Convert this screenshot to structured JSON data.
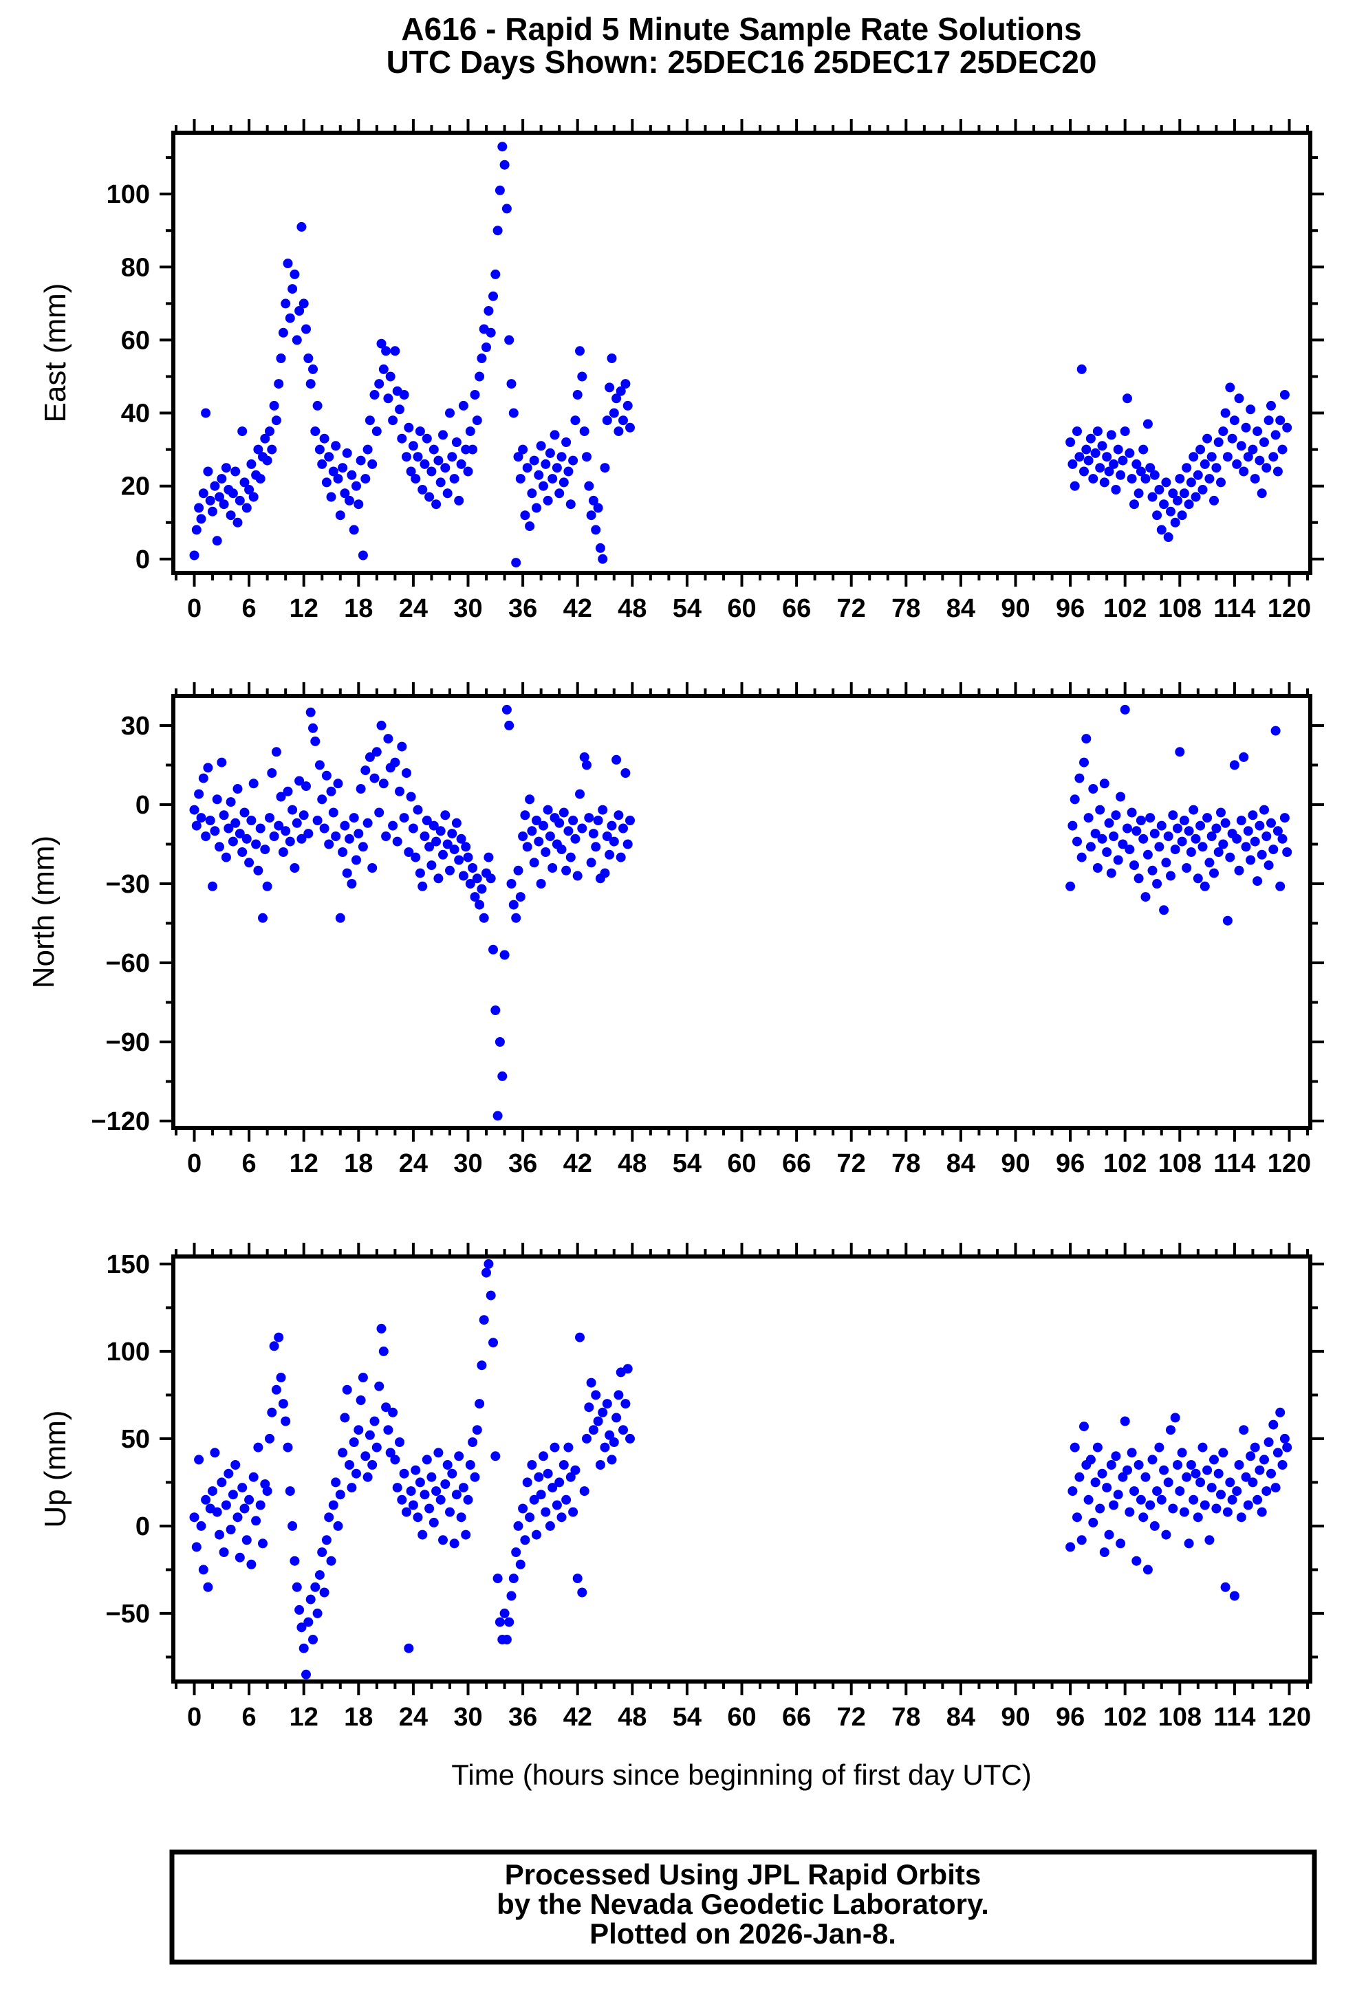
{
  "title": {
    "line1": "A616 - Rapid 5 Minute Sample Rate Solutions",
    "line2": "UTC Days Shown:  25DEC16 25DEC17 25DEC20"
  },
  "footer": {
    "line1": "Processed Using JPL Rapid Orbits",
    "line2": "by the Nevada Geodetic Laboratory.",
    "line3": "Plotted on 2026-Jan-8."
  },
  "colors": {
    "point": "#0000ff",
    "axis": "#000000",
    "background": "#ffffff"
  },
  "chart_data": {
    "type": "scatter",
    "station": "A616",
    "xlabel": "Time (hours since beginning of first day UTC)",
    "xlim": [
      -2.3,
      122.3
    ],
    "x_major_ticks": [
      0,
      6,
      12,
      18,
      24,
      30,
      36,
      42,
      48,
      54,
      60,
      66,
      72,
      78,
      84,
      90,
      96,
      102,
      108,
      114,
      120
    ],
    "x_minor_step": 2,
    "grid": false,
    "legend": "none",
    "panels": [
      {
        "name": "east",
        "ylabel": "East (mm)",
        "ylim": [
          -3.8,
          116.8
        ],
        "yticks": [
          0,
          20,
          40,
          60,
          80,
          100
        ],
        "y_minor_step": 10,
        "segments": [
          {
            "x0": 0,
            "dx": 0.25,
            "y": [
              1,
              8,
              14,
              11,
              18,
              40,
              24,
              16,
              13,
              20,
              5,
              17,
              22,
              15,
              25,
              19,
              12,
              18,
              24,
              10,
              16,
              35,
              21,
              14,
              19,
              26,
              17,
              23,
              30,
              22,
              28,
              33,
              27,
              35,
              30,
              42,
              38,
              48,
              55,
              62,
              70,
              81,
              66,
              74,
              78,
              60,
              68,
              91,
              70,
              63,
              55,
              48,
              52,
              35,
              42,
              30,
              26,
              33,
              21,
              28,
              17,
              24,
              31,
              22,
              12,
              25,
              18,
              29,
              16,
              23,
              8,
              20,
              15,
              27,
              1,
              22,
              30,
              38,
              26,
              45,
              35,
              48,
              59,
              52,
              57,
              44,
              50,
              38,
              57,
              46,
              41,
              33,
              45,
              28,
              36,
              24,
              31,
              22,
              28,
              35,
              19,
              26,
              33,
              17,
              24,
              30,
              15,
              27,
              21,
              34,
              25,
              18,
              40,
              28,
              22,
              32,
              16,
              26,
              42,
              30,
              24,
              35,
              30,
              45,
              38,
              50,
              55,
              63,
              58,
              68,
              62,
              72,
              78,
              90,
              101,
              113,
              108,
              96,
              60,
              48,
              40,
              -1,
              28,
              22,
              30,
              12,
              25,
              9,
              18,
              27,
              14,
              23,
              31,
              20,
              26,
              16,
              29,
              22,
              34,
              25,
              18,
              28,
              21,
              32,
              24,
              15,
              27,
              38,
              45,
              57,
              50,
              35,
              28,
              20,
              12,
              16,
              8,
              14,
              3,
              0,
              25,
              38,
              47,
              55,
              40,
              44,
              35,
              46,
              38,
              48,
              42,
              36
            ]
          },
          {
            "x0": 96,
            "dx": 0.25,
            "y": [
              32,
              26,
              20,
              35,
              28,
              52,
              24,
              30,
              27,
              33,
              22,
              29,
              35,
              25,
              31,
              21,
              28,
              24,
              34,
              26,
              19,
              30,
              23,
              27,
              35,
              44,
              29,
              22,
              15,
              26,
              18,
              24,
              30,
              22,
              37,
              25,
              17,
              23,
              12,
              19,
              8,
              15,
              21,
              6,
              13,
              18,
              10,
              16,
              22,
              12,
              18,
              25,
              15,
              21,
              28,
              17,
              23,
              30,
              19,
              26,
              33,
              22,
              28,
              16,
              25,
              32,
              21,
              35,
              40,
              28,
              47,
              33,
              38,
              26,
              44,
              31,
              24,
              36,
              28,
              41,
              30,
              22,
              35,
              27,
              18,
              32,
              25,
              38,
              42,
              28,
              34,
              24,
              38,
              30,
              45,
              36
            ]
          }
        ]
      },
      {
        "name": "north",
        "ylabel": "North (mm)",
        "ylim": [
          -122.6,
          41.2
        ],
        "yticks": [
          30,
          0,
          -30,
          -60,
          -90,
          -120
        ],
        "y_minor_step": 15,
        "segments": [
          {
            "x0": 0,
            "dx": 0.25,
            "y": [
              -2,
              -8,
              4,
              -5,
              10,
              -12,
              14,
              -6,
              -31,
              -10,
              2,
              -16,
              16,
              -4,
              -20,
              -9,
              1,
              -14,
              -7,
              6,
              -11,
              -18,
              -3,
              -13,
              -22,
              -6,
              8,
              -15,
              -25,
              -9,
              -43,
              -17,
              -31,
              -5,
              12,
              -12,
              20,
              -8,
              3,
              -18,
              -10,
              5,
              -14,
              -2,
              -24,
              -7,
              9,
              -13,
              -4,
              7,
              -11,
              35,
              29,
              24,
              -6,
              15,
              2,
              -9,
              11,
              -15,
              5,
              -3,
              -12,
              8,
              -43,
              -18,
              -8,
              -26,
              -13,
              -30,
              -5,
              -21,
              -11,
              6,
              -16,
              13,
              -7,
              18,
              -24,
              10,
              20,
              -3,
              30,
              8,
              -12,
              25,
              14,
              -8,
              16,
              -14,
              5,
              22,
              -5,
              12,
              -18,
              3,
              -9,
              -20,
              -2,
              -26,
              -31,
              -12,
              -6,
              -16,
              -23,
              -8,
              -14,
              -28,
              -10,
              -19,
              -4,
              -15,
              -25,
              -11,
              -17,
              -7,
              -21,
              -13,
              -27,
              -16,
              -20,
              -30,
              -24,
              -35,
              -28,
              -38,
              -32,
              -43,
              -26,
              -20,
              -28,
              -55,
              -78,
              -118,
              -90,
              -103,
              -57,
              36,
              30,
              -30,
              -38,
              -43,
              -25,
              -35,
              -12,
              -4,
              -16,
              2,
              -10,
              -22,
              -6,
              -14,
              -30,
              -8,
              -18,
              -2,
              -12,
              -24,
              -5,
              -15,
              -7,
              -17,
              -3,
              -25,
              -10,
              -20,
              -6,
              -13,
              -27,
              4,
              -9,
              18,
              15,
              -5,
              -22,
              -11,
              -16,
              -6,
              -28,
              -2,
              -26,
              -12,
              -19,
              -8,
              -14,
              17,
              -4,
              -20,
              -9,
              12,
              -15,
              -6
            ]
          },
          {
            "x0": 96,
            "dx": 0.25,
            "y": [
              -31,
              -8,
              2,
              -14,
              10,
              -20,
              16,
              25,
              -5,
              -16,
              6,
              -11,
              -24,
              -2,
              -13,
              8,
              -18,
              -7,
              -26,
              -12,
              -4,
              -21,
              3,
              -15,
              36,
              -9,
              -17,
              -3,
              -23,
              -10,
              -28,
              -6,
              -13,
              -35,
              -19,
              -5,
              -25,
              -11,
              -30,
              -16,
              -8,
              -40,
              -22,
              -12,
              -27,
              -4,
              -17,
              -9,
              20,
              -14,
              -6,
              -24,
              -10,
              -18,
              -2,
              -13,
              -28,
              -8,
              -16,
              -31,
              -5,
              -22,
              -12,
              -26,
              -9,
              -18,
              -3,
              -15,
              -7,
              -44,
              -20,
              -11,
              15,
              -13,
              -25,
              -6,
              18,
              -16,
              -10,
              -21,
              -4,
              -14,
              -29,
              -8,
              -19,
              -2,
              -12,
              -23,
              -7,
              -17,
              28,
              -10,
              -31,
              -13,
              -5,
              -18
            ]
          }
        ]
      },
      {
        "name": "up",
        "ylabel": "Up (mm)",
        "ylim": [
          -89,
          154.3
        ],
        "yticks": [
          150,
          100,
          50,
          0,
          -50
        ],
        "y_minor_step": 25,
        "segments": [
          {
            "x0": 0,
            "dx": 0.25,
            "y": [
              5,
              -12,
              38,
              0,
              -25,
              15,
              -35,
              10,
              20,
              42,
              8,
              -5,
              25,
              -15,
              12,
              30,
              -2,
              18,
              35,
              5,
              -18,
              22,
              10,
              -8,
              15,
              -22,
              28,
              3,
              45,
              12,
              -10,
              24,
              20,
              50,
              65,
              103,
              78,
              108,
              85,
              70,
              60,
              45,
              20,
              0,
              -20,
              -35,
              -48,
              -58,
              -70,
              -85,
              -55,
              -42,
              -65,
              -35,
              -50,
              -28,
              -15,
              -38,
              -8,
              5,
              -20,
              12,
              25,
              0,
              18,
              42,
              62,
              78,
              35,
              22,
              48,
              30,
              55,
              72,
              85,
              40,
              28,
              52,
              35,
              60,
              45,
              80,
              113,
              100,
              68,
              55,
              42,
              65,
              38,
              22,
              48,
              15,
              30,
              8,
              -70,
              20,
              12,
              32,
              5,
              25,
              -5,
              18,
              38,
              10,
              28,
              2,
              20,
              42,
              15,
              -8,
              24,
              35,
              8,
              30,
              -10,
              18,
              40,
              5,
              22,
              -5,
              15,
              35,
              48,
              28,
              55,
              70,
              92,
              118,
              145,
              150,
              132,
              105,
              40,
              -30,
              -55,
              -65,
              -50,
              -65,
              -55,
              -40,
              -30,
              -15,
              0,
              -22,
              10,
              -8,
              25,
              5,
              35,
              15,
              -5,
              28,
              18,
              40,
              8,
              30,
              0,
              22,
              45,
              12,
              25,
              5,
              35,
              15,
              45,
              28,
              8,
              32,
              -30,
              108,
              -38,
              20,
              50,
              68,
              82,
              55,
              75,
              60,
              35,
              65,
              45,
              70,
              52,
              38,
              48,
              62,
              75,
              88,
              55,
              70,
              90,
              50
            ]
          },
          {
            "x0": 96,
            "dx": 0.25,
            "y": [
              -12,
              20,
              45,
              5,
              28,
              -8,
              57,
              35,
              15,
              38,
              2,
              25,
              45,
              10,
              30,
              -15,
              22,
              -5,
              35,
              12,
              40,
              18,
              -10,
              28,
              60,
              32,
              8,
              42,
              20,
              -20,
              35,
              15,
              5,
              28,
              -25,
              12,
              38,
              0,
              20,
              45,
              15,
              32,
              -5,
              25,
              55,
              10,
              62,
              35,
              20,
              42,
              8,
              28,
              -10,
              35,
              15,
              30,
              5,
              25,
              45,
              12,
              32,
              -8,
              22,
              38,
              10,
              30,
              18,
              42,
              -35,
              8,
              25,
              15,
              -40,
              20,
              35,
              5,
              55,
              28,
              12,
              40,
              25,
              45,
              15,
              32,
              8,
              38,
              20,
              48,
              30,
              58,
              22,
              42,
              65,
              35,
              50,
              45
            ]
          }
        ]
      }
    ]
  }
}
